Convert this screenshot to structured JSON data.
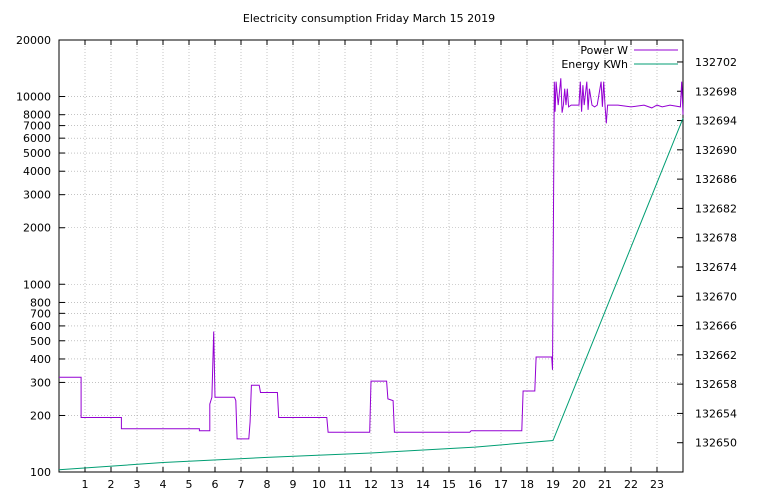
{
  "chart_data": {
    "type": "line",
    "title": "Electricity consumption Friday March 15 2019",
    "x": {
      "range": [
        0,
        24
      ],
      "ticks": [
        1,
        2,
        3,
        4,
        5,
        6,
        7,
        8,
        9,
        10,
        11,
        12,
        13,
        14,
        15,
        16,
        17,
        18,
        19,
        20,
        21,
        22,
        23
      ]
    },
    "y_left": {
      "scale": "log",
      "range": [
        100,
        20000
      ],
      "ticks": [
        100,
        200,
        300,
        400,
        500,
        600,
        700,
        800,
        1000,
        2000,
        3000,
        4000,
        5000,
        6000,
        7000,
        8000,
        10000,
        20000
      ]
    },
    "y_right": {
      "scale": "linear",
      "range": [
        132646,
        132705
      ],
      "ticks": [
        132650,
        132654,
        132658,
        132662,
        132666,
        132670,
        132674,
        132678,
        132682,
        132686,
        132690,
        132694,
        132698,
        132702
      ]
    },
    "grid": true,
    "legend_position": "top-right",
    "series": [
      {
        "name": "Power W",
        "axis": "left",
        "color": "#9400d3",
        "points": [
          [
            0,
            320
          ],
          [
            0.85,
            320
          ],
          [
            0.85,
            195
          ],
          [
            2.4,
            195
          ],
          [
            2.4,
            170
          ],
          [
            5.4,
            170
          ],
          [
            5.4,
            166
          ],
          [
            5.8,
            166
          ],
          [
            5.8,
            230
          ],
          [
            5.88,
            250
          ],
          [
            5.95,
            560
          ],
          [
            6.0,
            250
          ],
          [
            6.75,
            250
          ],
          [
            6.8,
            240
          ],
          [
            6.85,
            150
          ],
          [
            7.3,
            150
          ],
          [
            7.35,
            185
          ],
          [
            7.4,
            290
          ],
          [
            7.7,
            290
          ],
          [
            7.75,
            265
          ],
          [
            8.4,
            265
          ],
          [
            8.45,
            195
          ],
          [
            10.3,
            195
          ],
          [
            10.35,
            163
          ],
          [
            11.95,
            163
          ],
          [
            12.0,
            305
          ],
          [
            12.6,
            305
          ],
          [
            12.65,
            245
          ],
          [
            12.85,
            240
          ],
          [
            12.9,
            163
          ],
          [
            15.8,
            163
          ],
          [
            15.85,
            166
          ],
          [
            17.8,
            166
          ],
          [
            17.85,
            270
          ],
          [
            18.3,
            270
          ],
          [
            18.35,
            410
          ],
          [
            18.95,
            410
          ],
          [
            18.98,
            350
          ],
          [
            19.05,
            12000
          ],
          [
            19.08,
            8300
          ],
          [
            19.12,
            12000
          ],
          [
            19.2,
            9000
          ],
          [
            19.3,
            12500
          ],
          [
            19.35,
            8200
          ],
          [
            19.4,
            9000
          ],
          [
            19.45,
            11000
          ],
          [
            19.5,
            9000
          ],
          [
            19.55,
            11000
          ],
          [
            19.6,
            8800
          ],
          [
            19.7,
            9000
          ],
          [
            20.0,
            9000
          ],
          [
            20.05,
            12000
          ],
          [
            20.1,
            8300
          ],
          [
            20.15,
            11500
          ],
          [
            20.2,
            9000
          ],
          [
            20.3,
            12000
          ],
          [
            20.35,
            8500
          ],
          [
            20.4,
            11000
          ],
          [
            20.5,
            9000
          ],
          [
            20.6,
            8800
          ],
          [
            20.7,
            9000
          ],
          [
            20.85,
            12000
          ],
          [
            20.9,
            8800
          ],
          [
            20.95,
            12000
          ],
          [
            21.0,
            9000
          ],
          [
            21.05,
            7200
          ],
          [
            21.1,
            9000
          ],
          [
            21.5,
            9000
          ],
          [
            22.0,
            8800
          ],
          [
            22.5,
            9000
          ],
          [
            22.8,
            8700
          ],
          [
            23.0,
            9000
          ],
          [
            23.2,
            8800
          ],
          [
            23.5,
            9000
          ],
          [
            23.7,
            8900
          ],
          [
            23.9,
            8800
          ],
          [
            23.95,
            12000
          ],
          [
            24.0,
            8000
          ]
        ]
      },
      {
        "name": "Energy KWh",
        "axis": "right",
        "color": "#009e73",
        "points": [
          [
            0,
            132646.3
          ],
          [
            4,
            132647.3
          ],
          [
            8,
            132648.0
          ],
          [
            12,
            132648.6
          ],
          [
            16,
            132649.4
          ],
          [
            19.0,
            132650.3
          ],
          [
            24.0,
            132694.3
          ]
        ]
      }
    ]
  }
}
